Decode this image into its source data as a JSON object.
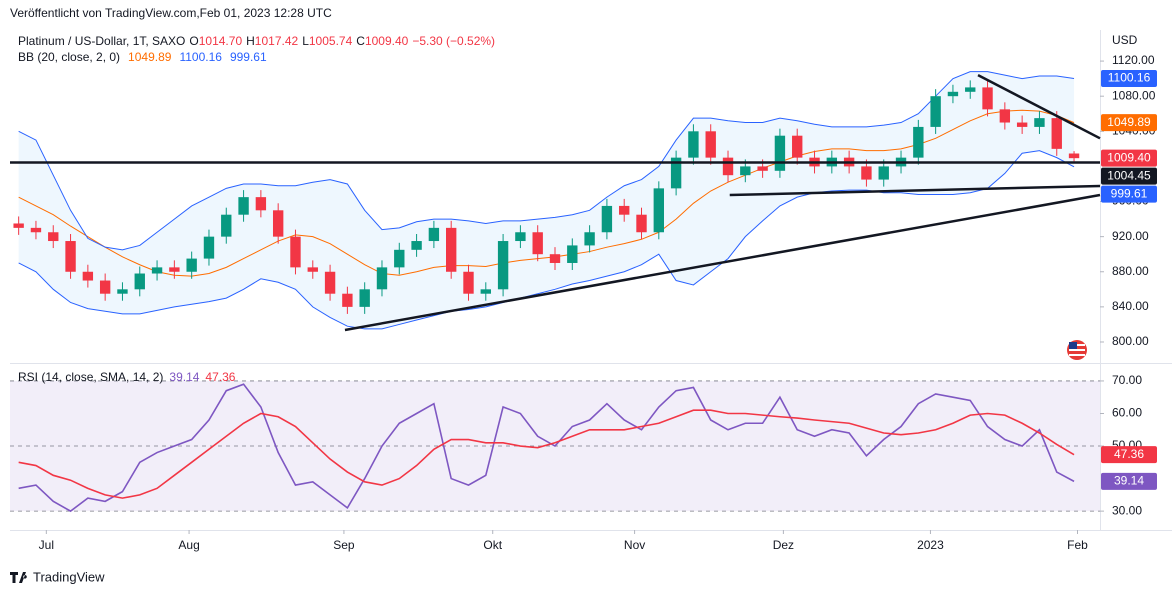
{
  "header": {
    "published": "Veröffentlicht von TradingView.com,Feb 01, 2023 12:28 UTC",
    "brand": "TradingView"
  },
  "chart_data": [
    {
      "type": "candlestick",
      "title": "Platinum / US-Dollar, 1T, SAXO",
      "currency": "USD",
      "ohlc_labels": [
        [
          "O",
          "1014.70"
        ],
        [
          "H",
          "1017.42"
        ],
        [
          "L",
          "1005.74"
        ],
        [
          "C",
          "1009.40"
        ]
      ],
      "change_label": "−5.30 (−0.52%)",
      "price_label": "1009.40",
      "up_color": "#089981",
      "down_color": "#f23645",
      "xlim": [
        -0.5,
        62.5
      ],
      "xticks": [
        {
          "value": 1.6,
          "label": "Jul"
        },
        {
          "value": 9.85,
          "label": "Aug"
        },
        {
          "value": 18.8,
          "label": "Sep"
        },
        {
          "value": 27.4,
          "label": "Okt"
        },
        {
          "value": 35.6,
          "label": "Nov"
        },
        {
          "value": 44.2,
          "label": "Dez"
        },
        {
          "value": 52.7,
          "label": "2023"
        },
        {
          "value": 61.2,
          "label": "Feb"
        }
      ],
      "ylim": [
        777.2,
        1155.4
      ],
      "yticks": [
        {
          "value": 800,
          "label": "800.00"
        },
        {
          "value": 840,
          "label": "840.00"
        },
        {
          "value": 880,
          "label": "880.00"
        },
        {
          "value": 920,
          "label": "920.00"
        },
        {
          "value": 960,
          "label": "960.00"
        },
        {
          "value": 1040,
          "label": "1040.00"
        },
        {
          "value": 1080,
          "label": "1080.00"
        },
        {
          "value": 1120,
          "label": "1120.00"
        }
      ],
      "open": [
        935,
        930,
        925,
        915,
        880,
        870,
        855,
        860,
        878,
        885,
        880,
        895,
        920,
        945,
        965,
        950,
        920,
        885,
        880,
        855,
        840,
        860,
        885,
        905,
        915,
        930,
        880,
        855,
        860,
        915,
        925,
        900,
        890,
        910,
        925,
        955,
        945,
        925,
        975,
        1010,
        1040,
        1010,
        990,
        1000,
        995,
        1035,
        1010,
        1000,
        1010,
        1000,
        985,
        1000,
        1010,
        1045,
        1080,
        1085,
        1090,
        1065,
        1050,
        1045,
        1055,
        1014.7
      ],
      "high": [
        943,
        938,
        933,
        923,
        888,
        878,
        868,
        886,
        893,
        893,
        903,
        928,
        953,
        973,
        973,
        958,
        928,
        893,
        888,
        863,
        868,
        893,
        913,
        923,
        938,
        938,
        888,
        868,
        923,
        933,
        933,
        908,
        918,
        933,
        963,
        963,
        953,
        983,
        1018,
        1048,
        1048,
        1018,
        1008,
        1008,
        1043,
        1043,
        1018,
        1018,
        1018,
        1008,
        1008,
        1018,
        1053,
        1088,
        1093,
        1098,
        1098,
        1073,
        1058,
        1063,
        1063,
        1017.42
      ],
      "low": [
        922,
        917,
        907,
        872,
        862,
        847,
        847,
        852,
        870,
        872,
        872,
        887,
        912,
        937,
        942,
        912,
        877,
        872,
        847,
        832,
        832,
        852,
        877,
        897,
        907,
        872,
        847,
        847,
        852,
        907,
        892,
        882,
        882,
        902,
        917,
        937,
        917,
        917,
        967,
        1002,
        1002,
        982,
        982,
        987,
        987,
        1002,
        992,
        992,
        992,
        977,
        977,
        992,
        1002,
        1037,
        1072,
        1077,
        1057,
        1042,
        1037,
        1037,
        1012,
        1005.74
      ],
      "close": [
        930,
        925,
        915,
        880,
        870,
        855,
        860,
        878,
        885,
        880,
        895,
        920,
        945,
        965,
        950,
        920,
        885,
        880,
        855,
        840,
        860,
        885,
        905,
        915,
        930,
        880,
        855,
        860,
        915,
        925,
        900,
        890,
        910,
        925,
        955,
        945,
        925,
        975,
        1010,
        1040,
        1010,
        990,
        1000,
        995,
        1035,
        1010,
        1000,
        1010,
        1000,
        985,
        1000,
        1010,
        1045,
        1080,
        1085,
        1090,
        1065,
        1050,
        1045,
        1055,
        1020,
        1009.4
      ],
      "overlay": {
        "title": "BB (20, close, 2, 0)",
        "fill": "rgba(33,150,243,0.08)",
        "series": [
          {
            "color": "#ff6d00",
            "values": [
              965,
              955,
              945,
              932,
              920,
              908,
              897,
              888,
              880,
              876,
              875,
              878,
              885,
              895,
              905,
              915,
              922,
              920,
              912,
              900,
              888,
              878,
              876,
              880,
              885,
              887,
              887,
              886,
              890,
              893,
              895,
              897,
              900,
              903,
              908,
              912,
              917,
              925,
              940,
              958,
              972,
              982,
              990,
              998,
              1005,
              1012,
              1017,
              1020,
              1020,
              1018,
              1018,
              1020,
              1025,
              1032,
              1042,
              1052,
              1060,
              1063,
              1064,
              1063,
              1058,
              1049.89
            ]
          },
          {
            "color": "#2962ff",
            "values": [
              1040,
              1030,
              990,
              950,
              918,
              908,
              905,
              910,
              925,
              940,
              955,
              965,
              975,
              980,
              980,
              978,
              978,
              982,
              985,
              980,
              950,
              928,
              930,
              937,
              940,
              940,
              938,
              935,
              938,
              938,
              940,
              942,
              945,
              950,
              965,
              978,
              985,
              1000,
              1030,
              1055,
              1055,
              1052,
              1050,
              1050,
              1055,
              1052,
              1048,
              1045,
              1045,
              1045,
              1047,
              1050,
              1060,
              1080,
              1100,
              1108,
              1108,
              1104,
              1100,
              1103,
              1103,
              1100.16
            ]
          },
          {
            "color": "#2962ff",
            "values": [
              890,
              880,
              860,
              845,
              838,
              835,
              832,
              832,
              836,
              840,
              843,
              846,
              850,
              860,
              872,
              868,
              860,
              840,
              828,
              818,
              815,
              815,
              820,
              825,
              830,
              835,
              837,
              840,
              845,
              850,
              855,
              860,
              866,
              870,
              875,
              880,
              888,
              900,
              870,
              865,
              880,
              895,
              920,
              938,
              955,
              965,
              970,
              972,
              973,
              973,
              970,
              970,
              968,
              968,
              968,
              970,
              975,
              992,
              1015,
              1018,
              1010,
              999.61
            ]
          }
        ]
      },
      "lines": [
        {
          "x": [
            -0.5,
            62.5
          ],
          "y": [
            1004.45,
            1004.45
          ],
          "color": "#131722",
          "badge": true
        },
        {
          "x": [
            18.86,
            62.5
          ],
          "y": [
            813.7,
            967.4
          ],
          "color": "#131722"
        },
        {
          "x": [
            41.1,
            62.5
          ],
          "y": [
            967.4,
            977.7
          ],
          "color": "#131722"
        },
        {
          "x": [
            55.45,
            62.5
          ],
          "y": [
            1104,
            1032
          ],
          "color": "#131722"
        }
      ]
    },
    {
      "type": "line",
      "title": "RSI (14, close, SMA, 14, 2)",
      "xlim": [
        -0.5,
        62.5
      ],
      "ylim": [
        24.2,
        74.9
      ],
      "yticks": [
        {
          "value": 30,
          "label": "30.00"
        },
        {
          "value": 50,
          "label": "50.00"
        },
        {
          "value": 60,
          "label": "60.00"
        },
        {
          "value": 70,
          "label": "70.00"
        }
      ],
      "hlines": [
        70,
        50,
        30
      ],
      "fill": "rgba(126,87,194,0.1)",
      "series": [
        {
          "color": "#7e57c2",
          "values": [
            37,
            38,
            33,
            30,
            34,
            33,
            36,
            45,
            48,
            50,
            52,
            58,
            67,
            69,
            62,
            48,
            38,
            39,
            35,
            31,
            40,
            50,
            57,
            60,
            63,
            40,
            38,
            41,
            62,
            60,
            53,
            50,
            56,
            58,
            63,
            58,
            55,
            62,
            67,
            68,
            58,
            55,
            57,
            57,
            65,
            55,
            53,
            55,
            54,
            47,
            52,
            56,
            63,
            66,
            65,
            64,
            56,
            52,
            50,
            55,
            42,
            39.14
          ]
        },
        {
          "color": "#f23645",
          "values": [
            45,
            44,
            41,
            39.5,
            37,
            35,
            34,
            35,
            37,
            41,
            45,
            49,
            53,
            57,
            60,
            59,
            56,
            51,
            46,
            42,
            39,
            38,
            40,
            44,
            49,
            52,
            52,
            51,
            51,
            50,
            49.5,
            51,
            53,
            55,
            55,
            55,
            56,
            57,
            59,
            61,
            61,
            60,
            60,
            59.5,
            59,
            58.6,
            58,
            57.5,
            57,
            55.5,
            54,
            53.5,
            54,
            55,
            57,
            59.5,
            60,
            59.5,
            57,
            54,
            50.5,
            47.36
          ]
        }
      ]
    }
  ]
}
